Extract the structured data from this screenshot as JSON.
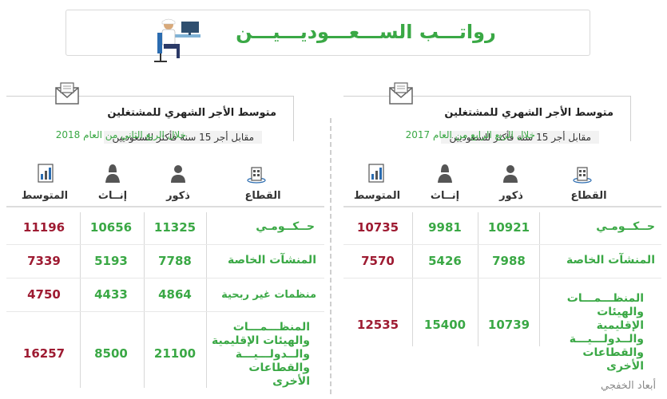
{
  "page": {
    "title": "رواتـــب الســـعـــوديـــيـــن",
    "source": "أبعاد الخفجي"
  },
  "colors": {
    "accent_green": "#3aa845",
    "average_red": "#9e1b32",
    "text": "#333333"
  },
  "icons": [
    "person-at-desk-icon",
    "envelope-icon",
    "building-icon",
    "man-icon",
    "woman-icon",
    "document-chart-icon"
  ],
  "chart_data": [
    {
      "type": "table",
      "title": "متوسط الأجر الشهري للمشتغلين",
      "subtitle": "مقابل أجر 15 سنة فأكثر للسعوديين",
      "period": "خلال الربع الرابع من العام 2017",
      "columns": [
        "القطاع",
        "ذكور",
        "إنــاث",
        "المتوسط"
      ],
      "rows": [
        {
          "sector": "حــكــومـي",
          "male": 10921,
          "female": 9981,
          "average": 10735
        },
        {
          "sector": "المنشآت الخاصة",
          "male": 7988,
          "female": 5426,
          "average": 7570
        },
        {
          "sector": "المنظـــمـــات والهيئات الإقليمية والــدولـــيـــة والقطاعات الأخرى",
          "male": 10739,
          "female": 15400,
          "average": 12535
        }
      ]
    },
    {
      "type": "table",
      "title": "متوسط الأجر الشهري للمشتغلين",
      "subtitle": "مقابل أجر 15 سنة فأكثر للسعوديين",
      "period": "خلال الربع الثاني من العام 2018",
      "columns": [
        "القطاع",
        "ذكور",
        "إنــاث",
        "المتوسط"
      ],
      "rows": [
        {
          "sector": "حــكــومـي",
          "male": 11325,
          "female": 10656,
          "average": 11196
        },
        {
          "sector": "المنشآت الخاصة",
          "male": 7788,
          "female": 5193,
          "average": 7339
        },
        {
          "sector": "منظمات غير ربحية",
          "male": 4864,
          "female": 4433,
          "average": 4750
        },
        {
          "sector": "المنظـــمـــات والهيئات الإقليمية والــدولـــيـــة والقطاعات الأخرى",
          "male": 21100,
          "female": 8500,
          "average": 16257
        }
      ]
    }
  ]
}
